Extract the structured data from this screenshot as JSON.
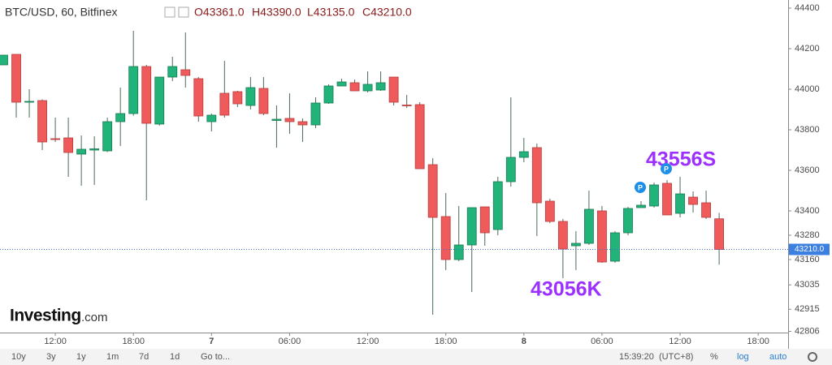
{
  "header": {
    "symbol": "BTC/USD, 60, Bitfinex",
    "ohlc": [
      "O43361.0",
      "H43390.0",
      "L43135.0",
      "C43210.0"
    ]
  },
  "logo": [
    "Investing",
    ".com"
  ],
  "toolbar": {
    "ranges": [
      "10y",
      "3y",
      "1y",
      "1m",
      "7d",
      "1d",
      "Go to..."
    ],
    "time": "15:39:20",
    "timezone": "(UTC+8)",
    "options": [
      "%",
      "log",
      "auto"
    ]
  },
  "chart_data": {
    "type": "candlestick",
    "up_color": "#22b37a",
    "down_color": "#ef5b5b",
    "x": [
      8,
      9,
      10,
      11,
      12,
      13,
      14,
      15,
      16,
      17,
      18,
      19,
      20,
      21,
      22,
      23,
      24,
      25,
      26,
      27,
      28,
      29,
      30,
      31,
      32,
      33,
      34,
      35,
      36,
      37,
      38,
      39,
      40,
      41,
      42,
      43,
      44,
      45,
      46,
      47,
      48,
      49,
      50,
      51,
      52,
      53,
      54,
      55,
      56,
      57,
      58,
      59,
      60,
      61,
      62,
      63
    ],
    "open": [
      44120,
      44172,
      43936,
      43944,
      43756,
      43760,
      43680,
      43700,
      43696,
      43840,
      43880,
      44112,
      43828,
      44060,
      44096,
      44052,
      43840,
      43980,
      43988,
      43920,
      44004,
      43846,
      43856,
      43840,
      43824,
      43932,
      44016,
      44032,
      43992,
      43996,
      44060,
      43922,
      43924,
      43628,
      43372,
      43160,
      43232,
      43420,
      43308,
      43544,
      43664,
      43712,
      43448,
      43348,
      43228,
      43240,
      43400,
      43152,
      43292,
      43416,
      43424,
      43536,
      43388,
      43468,
      43440,
      43361
    ],
    "high": [
      44170,
      44172,
      44000,
      43950,
      43860,
      43860,
      43772,
      43768,
      43860,
      44008,
      44288,
      44120,
      44060,
      44160,
      44280,
      44060,
      43880,
      44140,
      43992,
      44060,
      44060,
      43920,
      43980,
      43856,
      43960,
      44024,
      44052,
      44048,
      44088,
      44088,
      44060,
      43972,
      43936,
      43660,
      43488,
      43424,
      43416,
      43420,
      43568,
      43960,
      43760,
      43732,
      43460,
      43360,
      43300,
      43500,
      43424,
      43300,
      43420,
      43448,
      43540,
      43552,
      43568,
      43496,
      43500,
      43390
    ],
    "low": [
      44120,
      43860,
      43860,
      43700,
      43740,
      43568,
      43524,
      43528,
      43690,
      43720,
      43870,
      43452,
      43820,
      44040,
      44008,
      43840,
      43792,
      43860,
      43912,
      43900,
      43872,
      43712,
      43780,
      43740,
      43808,
      43928,
      44016,
      43992,
      43984,
      43992,
      43920,
      43908,
      43608,
      42888,
      43108,
      43152,
      43000,
      43228,
      43280,
      43520,
      43640,
      43276,
      43340,
      43068,
      43108,
      43232,
      43144,
      43144,
      43280,
      43416,
      43416,
      43380,
      43368,
      43392,
      43360,
      43135
    ],
    "close": [
      44168,
      43936,
      43940,
      43740,
      43752,
      43688,
      43704,
      43706,
      43840,
      43880,
      44112,
      43832,
      44060,
      44112,
      44068,
      43868,
      43872,
      43872,
      43928,
      44008,
      43880,
      43852,
      43840,
      43824,
      43932,
      44016,
      44036,
      43992,
      44024,
      44032,
      43936,
      43920,
      43608,
      43368,
      43160,
      43232,
      43416,
      43292,
      43544,
      43664,
      43692,
      43440,
      43348,
      43212,
      43240,
      43408,
      43148,
      43292,
      43412,
      43428,
      43528,
      43380,
      43484,
      43432,
      43368,
      43210
    ],
    "xlim": [
      7.75,
      68.3
    ],
    "xticks": [
      {
        "value": 12,
        "label": "12:00"
      },
      {
        "value": 18,
        "label": "18:00"
      },
      {
        "value": 24,
        "label": "7"
      },
      {
        "value": 30,
        "label": "06:00"
      },
      {
        "value": 36,
        "label": "12:00"
      },
      {
        "value": 42,
        "label": "18:00"
      },
      {
        "value": 48,
        "label": "8"
      },
      {
        "value": 54,
        "label": "06:00"
      },
      {
        "value": 60,
        "label": "12:00"
      },
      {
        "value": 66,
        "label": "18:00"
      }
    ],
    "ylim": [
      42800,
      44440
    ],
    "yticks": [
      44400,
      44200,
      44000,
      43800,
      43600,
      43400,
      43280,
      43160,
      43035,
      42915,
      42806
    ],
    "last_price": {
      "value": 43210,
      "label": "43210.0"
    },
    "markers": [
      "P",
      "P"
    ],
    "annotations": [
      "43556S",
      "43056K"
    ],
    "grid": false
  }
}
